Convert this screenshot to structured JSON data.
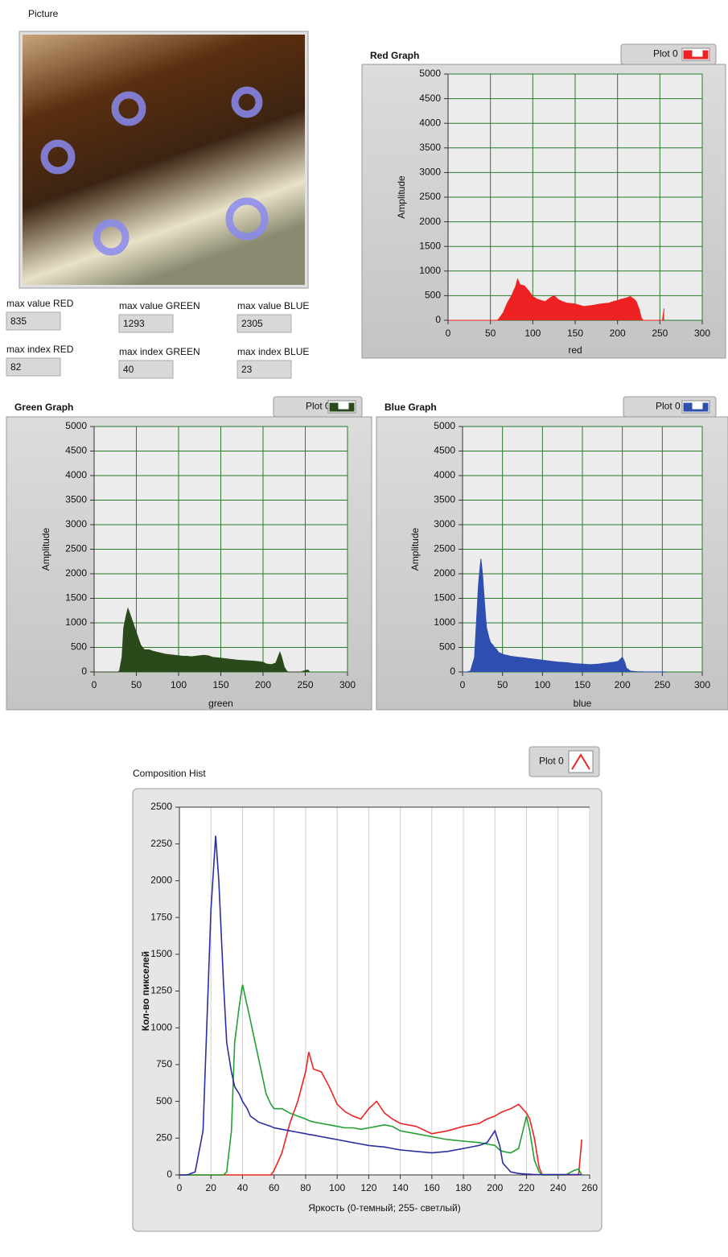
{
  "picture": {
    "label": "Picture"
  },
  "indicators": [
    {
      "label": "max value RED",
      "value": 835
    },
    {
      "label": "max value GREEN",
      "value": 1293
    },
    {
      "label": "max value BLUE",
      "value": 2305
    },
    {
      "label": "max index RED",
      "value": 82
    },
    {
      "label": "max index GREEN",
      "value": 40
    },
    {
      "label": "max index BLUE",
      "value": 23
    }
  ],
  "chart_data": [
    {
      "type": "area",
      "title": "Red Graph",
      "x_label": "red",
      "y_label": "Amplitude",
      "x": [
        0,
        5,
        10,
        15,
        18,
        20,
        23,
        25,
        28,
        30,
        33,
        35,
        38,
        40,
        43,
        45,
        50,
        55,
        58,
        60,
        65,
        70,
        75,
        80,
        82,
        85,
        90,
        95,
        100,
        105,
        110,
        115,
        120,
        125,
        130,
        135,
        140,
        150,
        160,
        170,
        180,
        190,
        195,
        200,
        203,
        205,
        210,
        215,
        220,
        222,
        225,
        228,
        230,
        235,
        240,
        245,
        250,
        253,
        255
      ],
      "series": [
        {
          "name": "Plot 0",
          "color": "#ee2222",
          "values": [
            0,
            0,
            0,
            0,
            0,
            0,
            0,
            0,
            0,
            0,
            0,
            0,
            0,
            0,
            0,
            0,
            0,
            0,
            0,
            30,
            150,
            350,
            500,
            700,
            835,
            720,
            700,
            600,
            480,
            430,
            400,
            380,
            450,
            500,
            420,
            380,
            350,
            330,
            280,
            300,
            330,
            350,
            380,
            400,
            420,
            430,
            450,
            480,
            420,
            380,
            250,
            50,
            0,
            0,
            0,
            0,
            0,
            0,
            240
          ]
        }
      ],
      "xlim": [
        0,
        300
      ],
      "xticks": [
        0,
        50,
        100,
        150,
        200,
        250,
        300
      ],
      "ylim": [
        0,
        5000
      ],
      "yticks": [
        0,
        500,
        1000,
        1500,
        2000,
        2500,
        3000,
        3500,
        4000,
        4500,
        5000
      ],
      "grid": true
    },
    {
      "type": "area",
      "title": "Green Graph",
      "x_label": "green",
      "y_label": "Amplitude",
      "x": [
        0,
        5,
        10,
        15,
        18,
        20,
        23,
        25,
        28,
        30,
        33,
        35,
        38,
        40,
        43,
        45,
        50,
        55,
        58,
        60,
        65,
        70,
        75,
        80,
        82,
        85,
        90,
        95,
        100,
        105,
        110,
        115,
        120,
        125,
        130,
        135,
        140,
        150,
        160,
        170,
        180,
        190,
        195,
        200,
        203,
        205,
        210,
        215,
        220,
        222,
        225,
        228,
        230,
        235,
        240,
        245,
        250,
        253,
        255
      ],
      "series": [
        {
          "name": "Plot 0",
          "color": "#2b4a1c",
          "values": [
            0,
            0,
            0,
            0,
            0,
            0,
            0,
            0,
            0,
            20,
            300,
            900,
            1150,
            1293,
            1150,
            1050,
            800,
            550,
            480,
            450,
            450,
            420,
            400,
            380,
            370,
            360,
            350,
            340,
            330,
            320,
            320,
            310,
            320,
            330,
            340,
            330,
            300,
            280,
            260,
            240,
            230,
            220,
            210,
            200,
            170,
            160,
            150,
            180,
            400,
            300,
            100,
            20,
            0,
            0,
            0,
            0,
            30,
            40,
            0
          ]
        }
      ],
      "xlim": [
        0,
        300
      ],
      "xticks": [
        0,
        50,
        100,
        150,
        200,
        250,
        300
      ],
      "ylim": [
        0,
        5000
      ],
      "yticks": [
        0,
        500,
        1000,
        1500,
        2000,
        2500,
        3000,
        3500,
        4000,
        4500,
        5000
      ],
      "grid": true
    },
    {
      "type": "area",
      "title": "Blue Graph",
      "x_label": "blue",
      "y_label": "Amplitude",
      "x": [
        0,
        5,
        10,
        15,
        18,
        20,
        23,
        25,
        28,
        30,
        33,
        35,
        38,
        40,
        43,
        45,
        50,
        55,
        58,
        60,
        65,
        70,
        75,
        80,
        82,
        85,
        90,
        95,
        100,
        105,
        110,
        115,
        120,
        125,
        130,
        135,
        140,
        150,
        160,
        170,
        180,
        190,
        195,
        200,
        203,
        205,
        210,
        215,
        220,
        222,
        225,
        228,
        230,
        235,
        240,
        245,
        250,
        253,
        255
      ],
      "series": [
        {
          "name": "Plot 0",
          "color": "#2f4fb0",
          "values": [
            0,
            0,
            20,
            300,
            1200,
            1800,
            2305,
            2000,
            1300,
            900,
            700,
            600,
            550,
            500,
            450,
            400,
            360,
            340,
            330,
            320,
            310,
            300,
            290,
            280,
            275,
            270,
            260,
            250,
            240,
            230,
            220,
            210,
            200,
            195,
            190,
            180,
            170,
            160,
            150,
            160,
            180,
            200,
            220,
            300,
            200,
            80,
            20,
            10,
            5,
            5,
            3,
            2,
            2,
            2,
            2,
            2,
            2,
            2,
            0
          ]
        }
      ],
      "xlim": [
        0,
        300
      ],
      "xticks": [
        0,
        50,
        100,
        150,
        200,
        250,
        300
      ],
      "ylim": [
        0,
        5000
      ],
      "yticks": [
        0,
        500,
        1000,
        1500,
        2000,
        2500,
        3000,
        3500,
        4000,
        4500,
        5000
      ],
      "grid": true
    },
    {
      "type": "line",
      "title": "Composition Hist",
      "legend": "Plot 0",
      "x_label": "Яркость (0-темный; 255- светлый)",
      "y_label": "Кол-во пикселей",
      "x": [
        0,
        5,
        10,
        15,
        18,
        20,
        23,
        25,
        28,
        30,
        33,
        35,
        38,
        40,
        43,
        45,
        50,
        55,
        58,
        60,
        65,
        70,
        75,
        80,
        82,
        85,
        90,
        95,
        100,
        105,
        110,
        115,
        120,
        125,
        130,
        135,
        140,
        150,
        160,
        170,
        180,
        190,
        195,
        200,
        203,
        205,
        210,
        215,
        220,
        222,
        225,
        228,
        230,
        235,
        240,
        245,
        250,
        253,
        255
      ],
      "series": [
        {
          "color": "#ee2222",
          "values": [
            0,
            0,
            0,
            0,
            0,
            0,
            0,
            0,
            0,
            0,
            0,
            0,
            0,
            0,
            0,
            0,
            0,
            0,
            0,
            30,
            150,
            350,
            500,
            700,
            835,
            720,
            700,
            600,
            480,
            430,
            400,
            380,
            450,
            500,
            420,
            380,
            350,
            330,
            280,
            300,
            330,
            350,
            380,
            400,
            420,
            430,
            450,
            480,
            420,
            380,
            250,
            50,
            0,
            0,
            0,
            0,
            0,
            0,
            240
          ]
        },
        {
          "color": "#22a032",
          "values": [
            0,
            0,
            0,
            0,
            0,
            0,
            0,
            0,
            0,
            20,
            300,
            900,
            1150,
            1293,
            1150,
            1050,
            800,
            550,
            480,
            450,
            450,
            420,
            400,
            380,
            370,
            360,
            350,
            340,
            330,
            320,
            320,
            310,
            320,
            330,
            340,
            330,
            300,
            280,
            260,
            240,
            230,
            220,
            210,
            200,
            170,
            160,
            150,
            180,
            400,
            300,
            100,
            20,
            0,
            0,
            0,
            0,
            30,
            40,
            0
          ]
        },
        {
          "color": "#2a2ea0",
          "values": [
            0,
            0,
            20,
            300,
            1200,
            1800,
            2305,
            2000,
            1300,
            900,
            700,
            600,
            550,
            500,
            450,
            400,
            360,
            340,
            330,
            320,
            310,
            300,
            290,
            280,
            275,
            270,
            260,
            250,
            240,
            230,
            220,
            210,
            200,
            195,
            190,
            180,
            170,
            160,
            150,
            160,
            180,
            200,
            220,
            300,
            200,
            80,
            20,
            10,
            5,
            5,
            3,
            2,
            2,
            2,
            2,
            2,
            2,
            2,
            0
          ]
        }
      ],
      "xlim": [
        0,
        260
      ],
      "xticks": [
        0,
        20,
        40,
        60,
        80,
        100,
        120,
        140,
        160,
        180,
        200,
        220,
        240,
        260
      ],
      "ylim": [
        0,
        2500
      ],
      "yticks": [
        0,
        250,
        500,
        750,
        1000,
        1250,
        1500,
        1750,
        2000,
        2250,
        2500
      ],
      "grid": "x"
    }
  ]
}
